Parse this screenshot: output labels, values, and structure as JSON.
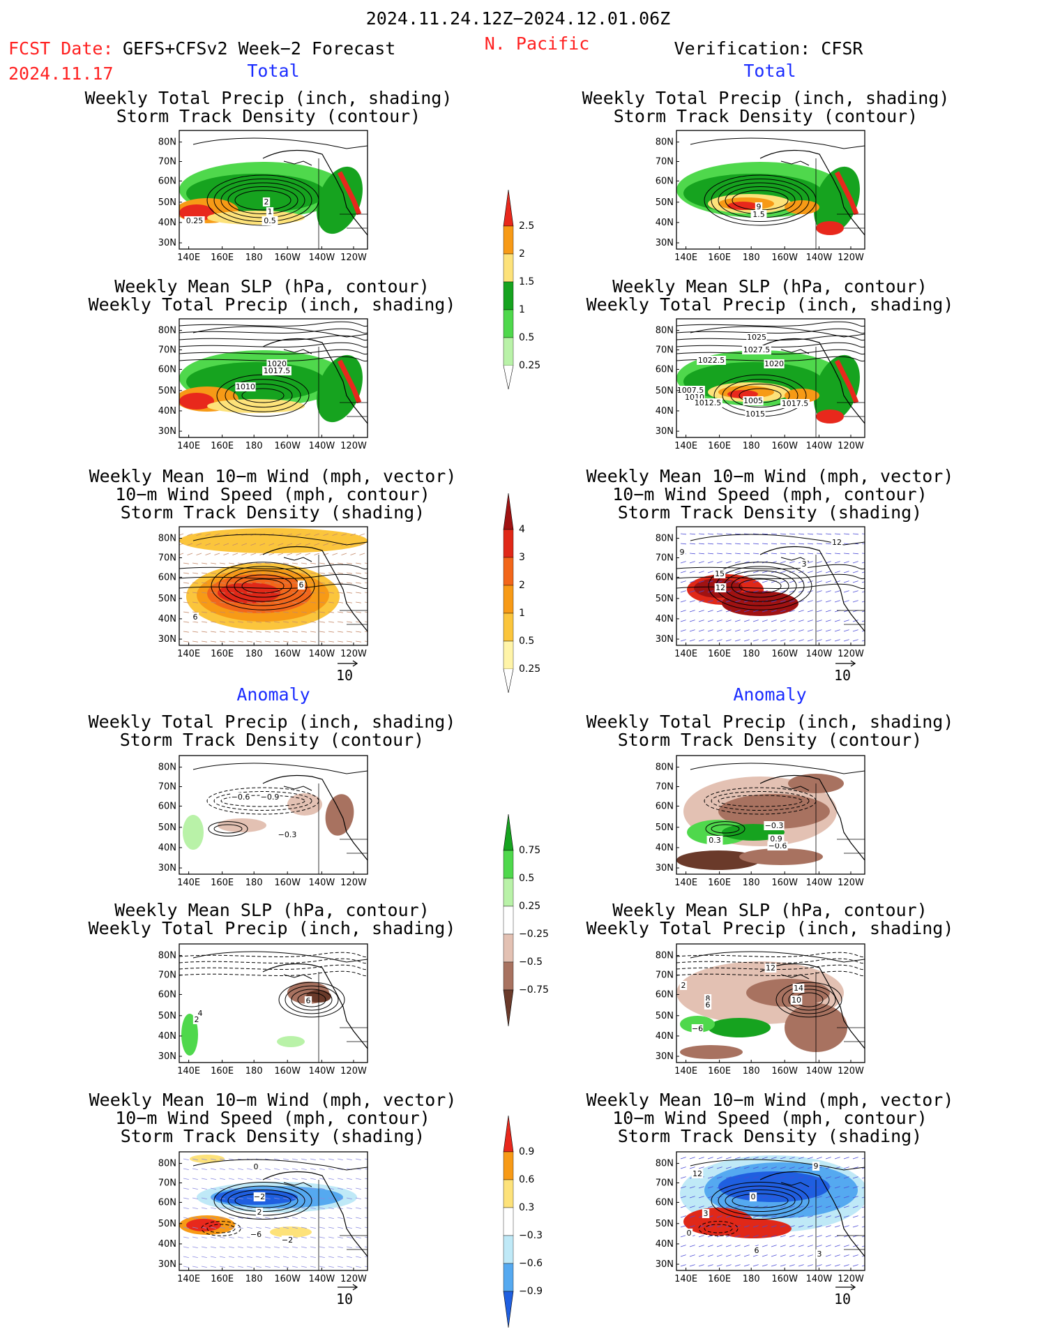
{
  "header": {
    "period": "2024.11.24.12Z−2024.12.01.06Z",
    "fcst_label": "FCST Date:",
    "fcst_model": "GEFS+CFSv2 Week−2 Forecast",
    "fcst_date": "2024.11.17",
    "region": "N. Pacific",
    "verification": "Verification: CFSR"
  },
  "sections": {
    "total": "Total",
    "anomaly": "Anomaly"
  },
  "panels": [
    {
      "title": [
        "Weekly Total Precip (inch, shading)",
        "Storm Track Density (contour)"
      ],
      "labels": [
        "2",
        "1",
        "0.5",
        "0.25"
      ]
    },
    {
      "title": [
        "Weekly Total Precip (inch, shading)",
        "Storm Track Density (contour)"
      ],
      "labels": [
        "9",
        "1.5"
      ]
    },
    {
      "title": [
        "Weekly Mean SLP (hPa, contour)",
        "Weekly Total Precip (inch, shading)"
      ],
      "labels": [
        "1020",
        "1017.5",
        "1010"
      ]
    },
    {
      "title": [
        "Weekly Mean SLP (hPa, contour)",
        "Weekly Total Precip (inch, shading)"
      ],
      "labels": [
        "1025",
        "1027.5",
        "1022.5",
        "1020",
        "1007.5",
        "1010",
        "1012.5",
        "1005",
        "1015",
        "1017.5"
      ]
    },
    {
      "title": [
        "Weekly Mean 10−m Wind (mph, vector)",
        "10−m Wind Speed (mph, contour)",
        "Storm Track Density (shading)"
      ],
      "labels": [
        "6",
        "6"
      ]
    },
    {
      "title": [
        "Weekly Mean 10−m Wind (mph, vector)",
        "10−m Wind Speed (mph, contour)",
        "Storm Track Density (shading)"
      ],
      "labels": [
        "12",
        "9",
        "15",
        "12",
        "3"
      ]
    },
    {
      "title": [
        "Weekly Total Precip (inch, shading)",
        "Storm Track Density (contour)"
      ],
      "labels": [
        "−0.6",
        "−0.9",
        "−0.3"
      ]
    },
    {
      "title": [
        "Weekly Total Precip (inch, shading)",
        "Storm Track Density (contour)"
      ],
      "labels": [
        "−0.3",
        "0.3",
        "−0.6",
        "0.9"
      ]
    },
    {
      "title": [
        "Weekly Mean SLP (hPa, contour)",
        "Weekly Total Precip (inch, shading)"
      ],
      "labels": [
        "4",
        "2",
        "6"
      ]
    },
    {
      "title": [
        "Weekly Mean SLP (hPa, contour)",
        "Weekly Total Precip (inch, shading)"
      ],
      "labels": [
        "12",
        "14",
        "10",
        "2",
        "8",
        "6",
        "−6"
      ]
    },
    {
      "title": [
        "Weekly Mean 10−m Wind (mph, vector)",
        "10−m Wind Speed (mph, contour)",
        "Storm Track Density (shading)"
      ],
      "labels": [
        "0",
        "−2",
        "2",
        "−6",
        "−2"
      ]
    },
    {
      "title": [
        "Weekly Mean 10−m Wind (mph, vector)",
        "10−m Wind Speed (mph, contour)",
        "Storm Track Density (shading)"
      ],
      "labels": [
        "9",
        "12",
        "0",
        "3",
        "0",
        "6",
        "3"
      ]
    }
  ],
  "axes": {
    "lat": [
      "80N",
      "70N",
      "60N",
      "50N",
      "40N",
      "30N"
    ],
    "lon": [
      "140E",
      "160E",
      "180",
      "160W",
      "140W",
      "120W"
    ]
  },
  "vector_ref": "10",
  "colorbars": [
    {
      "name": "precip-total",
      "labels": [
        "2.5",
        "2",
        "1.5",
        "1",
        "0.5",
        "0.25"
      ],
      "colors": [
        "#e8281c",
        "#f79a16",
        "#fde27a",
        "#16a31f",
        "#4fd84c",
        "#b9f2a8"
      ]
    },
    {
      "name": "storm-density-total",
      "labels": [
        "4",
        "3",
        "2",
        "1",
        "0.5",
        "0.25"
      ],
      "colors": [
        "#a01212",
        "#e02818",
        "#f2661a",
        "#f79a16",
        "#fbc53c",
        "#fff4a8"
      ]
    },
    {
      "name": "precip-anom",
      "labels": [
        "0.75",
        "0.5",
        "0.25",
        "−0.25",
        "−0.5",
        "−0.75"
      ],
      "colors": [
        "#16a31f",
        "#4fd84c",
        "#b9f2a8",
        "#ffffff",
        "#e3c1b3",
        "#a87260",
        "#6a3a2a"
      ]
    },
    {
      "name": "storm-density-anom",
      "labels": [
        "0.9",
        "0.6",
        "0.3",
        "−0.3",
        "−0.6",
        "−0.9"
      ],
      "colors": [
        "#e8281c",
        "#f79a16",
        "#fde27a",
        "#ffffff",
        "#bfe9f7",
        "#55a9f0",
        "#1f5fe0"
      ]
    }
  ]
}
